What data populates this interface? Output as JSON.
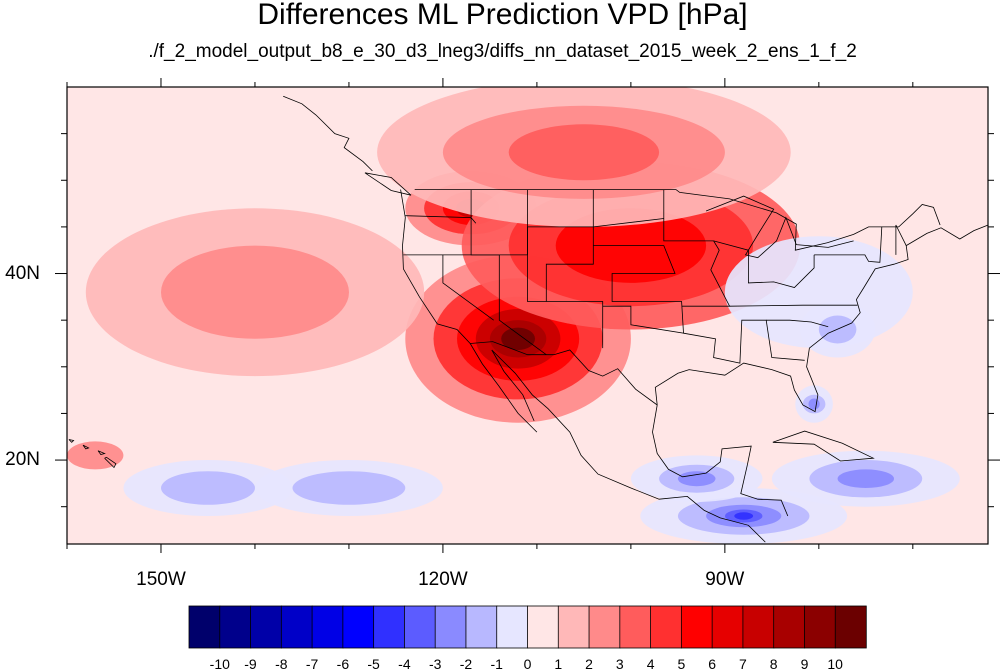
{
  "header": {
    "title": "Differences ML Prediction VPD [hPa]",
    "subtitle": "./f_2_model_output_b8_e_30_d3_lneg3/diffs_nn_dataset_2015_week_2_ens_1_f_2"
  },
  "chart_data": {
    "type": "heatmap",
    "title": "Differences ML Prediction VPD [hPa]",
    "subtitle": "./f_2_model_output_b8_e_30_d3_lneg3/diffs_nn_dataset_2015_week_2_ens_1_f_2",
    "projection": "cylindrical equidistant",
    "lon_range": [
      -160,
      -62
    ],
    "lat_range": [
      11,
      60
    ],
    "x_ticks": [
      {
        "value": -150,
        "label": "150W"
      },
      {
        "value": -120,
        "label": "120W"
      },
      {
        "value": -90,
        "label": "90W"
      }
    ],
    "y_ticks": [
      {
        "value": 40,
        "label": "40N"
      },
      {
        "value": 20,
        "label": "20N"
      }
    ],
    "colorbar": {
      "levels": [
        -10,
        -9,
        -8,
        -7,
        -6,
        -5,
        -4,
        -3,
        -2,
        -1,
        0,
        1,
        2,
        3,
        4,
        5,
        6,
        7,
        8,
        9,
        10
      ],
      "labels": [
        "-10",
        "-9",
        "-8",
        "-7",
        "-6",
        "-5",
        "-4",
        "-3",
        "-2",
        "-1",
        "0",
        "1",
        "2",
        "3",
        "4",
        "5",
        "6",
        "7",
        "8",
        "9",
        "10"
      ],
      "colors": [
        "#00006b",
        "#00008b",
        "#0000a8",
        "#0000c8",
        "#0000e6",
        "#0000ff",
        "#3030ff",
        "#5c5cff",
        "#8a8aff",
        "#b8b8ff",
        "#e6e6ff",
        "#ffe6e6",
        "#ffb8b8",
        "#ff8a8a",
        "#ff5c5c",
        "#ff3030",
        "#ff0000",
        "#e60000",
        "#c80000",
        "#a80000",
        "#8b0000",
        "#6b0000"
      ],
      "orientation": "horizontal"
    },
    "features": [
      {
        "name": "Southwest US / Baja maximum",
        "lon": -112,
        "lat": 33,
        "value": 10
      },
      {
        "name": "Pacific Northwest maximum",
        "lon": -117,
        "lat": 47,
        "value": 7
      },
      {
        "name": "Great Plains high",
        "lon": -100,
        "lat": 43,
        "value": 5
      },
      {
        "name": "Northern Canada moderate",
        "lon": -105,
        "lat": 53,
        "value": 3
      },
      {
        "name": "Eastern Pacific mild",
        "lon": -140,
        "lat": 38,
        "value": 2
      },
      {
        "name": "Eastern US near zero",
        "lon": -80,
        "lat": 38,
        "value": 0
      },
      {
        "name": "Carolina coast negative",
        "lon": -78,
        "lat": 34,
        "value": -2
      },
      {
        "name": "Florida negative",
        "lon": -80.5,
        "lat": 26,
        "value": -3
      },
      {
        "name": "Central America negative",
        "lon": -88,
        "lat": 14,
        "value": -5
      },
      {
        "name": "Gulf of Mexico south negative",
        "lon": -93,
        "lat": 18,
        "value": -3
      },
      {
        "name": "Tropical Atlantic negative",
        "lon": -75,
        "lat": 18,
        "value": -3
      },
      {
        "name": "Tropical Pacific west negative",
        "lon": -145,
        "lat": 17,
        "value": -2
      },
      {
        "name": "Tropical Pacific central negative",
        "lon": -130,
        "lat": 17,
        "value": -2
      },
      {
        "name": "Hawaii mild positive",
        "lon": -157,
        "lat": 20.5,
        "value": 2
      }
    ]
  }
}
